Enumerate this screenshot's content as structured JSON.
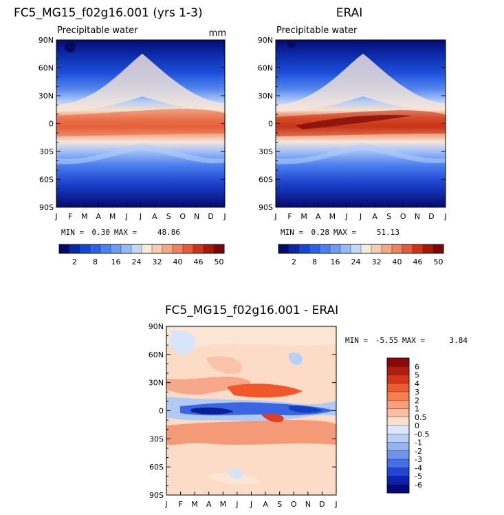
{
  "figure_title": "FC5_MG15_f02g16.001 - ERAI",
  "chart_data": [
    {
      "type": "heatmap",
      "title": "FC5_MG15_f02g16.001 (yrs 1-3)",
      "subtitle": "Precipitable water",
      "units": "mm",
      "x_ticks": [
        "J",
        "F",
        "M",
        "A",
        "M",
        "J",
        "J",
        "A",
        "S",
        "O",
        "N",
        "D",
        "J"
      ],
      "y_ticks": [
        "90N",
        "60N",
        "30N",
        "0",
        "30S",
        "60S",
        "90S"
      ],
      "min_label": "MIN =",
      "max_label": "MAX =",
      "min": "0.30",
      "max": "48.86",
      "colorbar_ticks": [
        "2",
        "8",
        "16",
        "24",
        "32",
        "40",
        "46",
        "50"
      ],
      "colorbar_colors": [
        "#050a6e",
        "#0a28a6",
        "#1446d2",
        "#2a62e6",
        "#4b80f0",
        "#6e9af2",
        "#98baf4",
        "#c4d8f6",
        "#f6ead8",
        "#f8ccb0",
        "#f4a884",
        "#ee8260",
        "#e65a3c",
        "#cc3418",
        "#a81808",
        "#7a0606"
      ]
    },
    {
      "type": "heatmap",
      "title": "ERAI",
      "subtitle": "Precipitable water",
      "units": "",
      "x_ticks": [
        "J",
        "F",
        "M",
        "A",
        "M",
        "J",
        "J",
        "A",
        "S",
        "O",
        "N",
        "D",
        "J"
      ],
      "y_ticks": [
        "90N",
        "60N",
        "30N",
        "0",
        "30S",
        "60S",
        "90S"
      ],
      "min_label": "MIN =",
      "max_label": "MAX =",
      "min": "0.28",
      "max": "51.13",
      "colorbar_ticks": [
        "2",
        "8",
        "16",
        "24",
        "32",
        "40",
        "46",
        "50"
      ],
      "colorbar_colors": [
        "#050a6e",
        "#0a28a6",
        "#1446d2",
        "#2a62e6",
        "#4b80f0",
        "#6e9af2",
        "#98baf4",
        "#c4d8f6",
        "#f6ead8",
        "#f8ccb0",
        "#f4a884",
        "#ee8260",
        "#e65a3c",
        "#cc3418",
        "#a81808",
        "#7a0606"
      ]
    },
    {
      "type": "heatmap",
      "title": "",
      "subtitle": "",
      "units": "",
      "x_ticks": [
        "J",
        "F",
        "M",
        "A",
        "M",
        "J",
        "J",
        "A",
        "S",
        "O",
        "N",
        "D",
        "J"
      ],
      "y_ticks": [
        "90N",
        "60N",
        "30N",
        "0",
        "30S",
        "60S",
        "90S"
      ],
      "min_label": "MIN =",
      "max_label": "MAX =",
      "min": "-5.55",
      "max": "3.84",
      "colorbar_ticks": [
        "6",
        "5",
        "4",
        "3",
        "2",
        "1",
        "0.5",
        "0",
        "-0.5",
        "-1",
        "-2",
        "-3",
        "-4",
        "-5",
        "-6"
      ],
      "colorbar_colors": [
        "#8a0808",
        "#b41c0c",
        "#d83414",
        "#f05a2e",
        "#f6804e",
        "#f8a07c",
        "#fabea2",
        "#fde0cc",
        "#dce8fa",
        "#b8d0f8",
        "#94b4f4",
        "#6e94f0",
        "#4670e6",
        "#2246d0",
        "#0c24aa",
        "#050a78"
      ]
    }
  ]
}
